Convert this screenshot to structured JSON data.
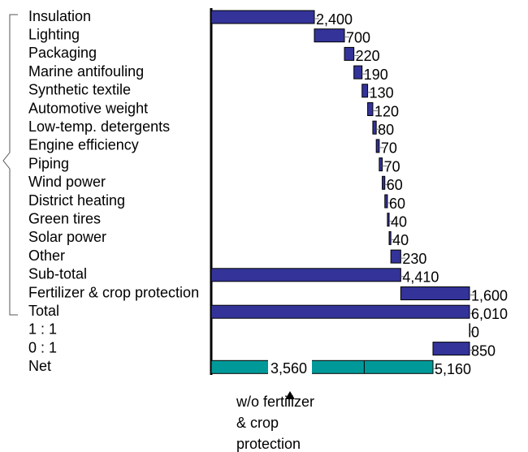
{
  "chart_data": {
    "type": "waterfall",
    "categories": [
      "Insulation",
      "Lighting",
      "Packaging",
      "Marine antifouling",
      "Synthetic textile",
      "Automotive weight",
      "Low-temp. detergents",
      "Engine efficiency",
      "Piping",
      "Wind power",
      "District heating",
      "Green tires",
      "Solar power",
      "Other",
      "Sub-total",
      "Fertilizer & crop protection",
      "Total",
      "1 : 1",
      "0 : 1",
      "Net"
    ],
    "values": [
      2400,
      700,
      220,
      190,
      130,
      120,
      80,
      70,
      70,
      60,
      60,
      40,
      40,
      230,
      4410,
      1600,
      6010,
      0,
      850,
      5160
    ],
    "value_labels": [
      "2,400",
      "700",
      "220",
      "190",
      "130",
      "120",
      "80",
      "70",
      "70",
      "60",
      "60",
      "40",
      "40",
      "230",
      "4,410",
      "1,600",
      "6,010",
      "0",
      "850",
      "5,160"
    ],
    "measures": [
      "relative",
      "relative",
      "relative",
      "relative",
      "relative",
      "relative",
      "relative",
      "relative",
      "relative",
      "relative",
      "relative",
      "relative",
      "relative",
      "relative",
      "total",
      "relative",
      "total",
      "relative",
      "decrease",
      "total"
    ],
    "color": "#333399",
    "net_color": "#009999",
    "xlim": [
      0,
      6010
    ],
    "net_without_fertilizer": {
      "value": 3560,
      "label": "3,560"
    },
    "annotation": [
      "w/o fertilizer",
      "& crop",
      "protection"
    ]
  }
}
